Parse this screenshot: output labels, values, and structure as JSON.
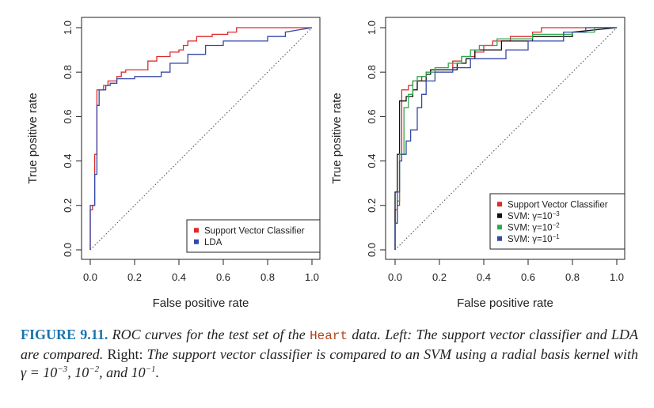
{
  "chart_data": [
    {
      "type": "line",
      "xlabel": "False positive rate",
      "ylabel": "True positive rate",
      "xlim": [
        0,
        1
      ],
      "ylim": [
        0,
        1
      ],
      "xticks": [
        "0.0",
        "0.2",
        "0.4",
        "0.6",
        "0.8",
        "1.0"
      ],
      "yticks": [
        "0.0",
        "0.2",
        "0.4",
        "0.6",
        "0.8",
        "1.0"
      ],
      "diagonal": "dotted reference line from (0,0) to (1,1)",
      "legend_position": "bottom-right",
      "series": [
        {
          "name": "Support Vector Classifier",
          "color": "#df2a2a",
          "x": [
            0,
            0,
            0.01,
            0.01,
            0.02,
            0.02,
            0.03,
            0.03,
            0.06,
            0.06,
            0.08,
            0.08,
            0.12,
            0.12,
            0.14,
            0.14,
            0.16,
            0.16,
            0.2,
            0.2,
            0.26,
            0.26,
            0.3,
            0.3,
            0.36,
            0.36,
            0.4,
            0.4,
            0.42,
            0.42,
            0.44,
            0.44,
            0.48,
            0.48,
            0.52,
            0.52,
            0.55,
            0.55,
            0.62,
            0.62,
            0.66,
            0.66,
            0.88,
            0.88,
            1
          ],
          "y": [
            0,
            0.18,
            0.18,
            0.2,
            0.2,
            0.43,
            0.43,
            0.72,
            0.72,
            0.74,
            0.74,
            0.76,
            0.76,
            0.78,
            0.78,
            0.8,
            0.8,
            0.81,
            0.81,
            0.81,
            0.81,
            0.85,
            0.85,
            0.87,
            0.87,
            0.89,
            0.89,
            0.9,
            0.9,
            0.92,
            0.92,
            0.94,
            0.94,
            0.96,
            0.96,
            0.96,
            0.96,
            0.97,
            0.97,
            0.98,
            0.98,
            1,
            1,
            1,
            1
          ]
        },
        {
          "name": "LDA",
          "color": "#3548a8",
          "x": [
            0,
            0,
            0.02,
            0.02,
            0.03,
            0.03,
            0.04,
            0.04,
            0.07,
            0.07,
            0.09,
            0.09,
            0.12,
            0.12,
            0.2,
            0.2,
            0.32,
            0.32,
            0.36,
            0.36,
            0.44,
            0.44,
            0.52,
            0.52,
            0.6,
            0.6,
            0.8,
            0.8,
            0.88,
            0.88,
            1
          ],
          "y": [
            0,
            0.2,
            0.2,
            0.34,
            0.34,
            0.65,
            0.65,
            0.72,
            0.72,
            0.74,
            0.74,
            0.75,
            0.75,
            0.77,
            0.77,
            0.78,
            0.78,
            0.8,
            0.8,
            0.84,
            0.84,
            0.88,
            0.88,
            0.92,
            0.92,
            0.94,
            0.94,
            0.96,
            0.96,
            0.98,
            1
          ]
        }
      ]
    },
    {
      "type": "line",
      "xlabel": "False positive rate",
      "ylabel": "True positive rate",
      "xlim": [
        0,
        1
      ],
      "ylim": [
        0,
        1
      ],
      "xticks": [
        "0.0",
        "0.2",
        "0.4",
        "0.6",
        "0.8",
        "1.0"
      ],
      "yticks": [
        "0.0",
        "0.2",
        "0.4",
        "0.6",
        "0.8",
        "1.0"
      ],
      "diagonal": "dotted reference line from (0,0) to (1,1)",
      "legend_position": "bottom-right",
      "series": [
        {
          "name": "Support Vector Classifier",
          "color": "#df2a2a",
          "x": [
            0,
            0,
            0.01,
            0.01,
            0.02,
            0.02,
            0.03,
            0.03,
            0.06,
            0.06,
            0.08,
            0.08,
            0.12,
            0.12,
            0.14,
            0.14,
            0.16,
            0.16,
            0.26,
            0.26,
            0.3,
            0.3,
            0.36,
            0.36,
            0.4,
            0.4,
            0.44,
            0.44,
            0.52,
            0.52,
            0.62,
            0.62,
            0.66,
            0.66,
            0.88,
            0.88,
            1
          ],
          "y": [
            0,
            0.18,
            0.18,
            0.2,
            0.2,
            0.43,
            0.43,
            0.72,
            0.72,
            0.74,
            0.74,
            0.76,
            0.76,
            0.78,
            0.78,
            0.8,
            0.8,
            0.81,
            0.81,
            0.85,
            0.85,
            0.87,
            0.87,
            0.89,
            0.89,
            0.92,
            0.92,
            0.94,
            0.94,
            0.96,
            0.96,
            0.98,
            0.98,
            1,
            1,
            1,
            1
          ]
        },
        {
          "name": "SVM: γ=10⁻³",
          "label_base": "SVM: γ=10",
          "label_exp": "−3",
          "color": "#111111",
          "x": [
            0,
            0,
            0.01,
            0.01,
            0.02,
            0.02,
            0.05,
            0.05,
            0.08,
            0.08,
            0.1,
            0.1,
            0.14,
            0.14,
            0.16,
            0.16,
            0.22,
            0.22,
            0.28,
            0.28,
            0.32,
            0.32,
            0.36,
            0.36,
            0.48,
            0.48,
            0.62,
            0.62,
            0.8,
            0.8,
            1
          ],
          "y": [
            0,
            0.26,
            0.26,
            0.43,
            0.43,
            0.67,
            0.67,
            0.69,
            0.69,
            0.72,
            0.72,
            0.76,
            0.76,
            0.79,
            0.79,
            0.81,
            0.81,
            0.81,
            0.81,
            0.84,
            0.84,
            0.86,
            0.86,
            0.9,
            0.9,
            0.94,
            0.94,
            0.96,
            0.96,
            0.98,
            1
          ]
        },
        {
          "name": "SVM: γ=10⁻²",
          "label_base": "SVM: γ=10",
          "label_exp": "−2",
          "color": "#2fa84f",
          "x": [
            0,
            0,
            0.01,
            0.01,
            0.02,
            0.02,
            0.04,
            0.04,
            0.06,
            0.06,
            0.08,
            0.08,
            0.1,
            0.1,
            0.14,
            0.14,
            0.18,
            0.18,
            0.24,
            0.24,
            0.3,
            0.3,
            0.34,
            0.34,
            0.38,
            0.38,
            0.46,
            0.46,
            0.62,
            0.62,
            0.8,
            0.8,
            0.9,
            0.9,
            1
          ],
          "y": [
            0,
            0.12,
            0.12,
            0.22,
            0.22,
            0.43,
            0.43,
            0.64,
            0.64,
            0.7,
            0.7,
            0.76,
            0.76,
            0.78,
            0.78,
            0.8,
            0.8,
            0.82,
            0.82,
            0.84,
            0.84,
            0.87,
            0.87,
            0.9,
            0.9,
            0.92,
            0.92,
            0.95,
            0.95,
            0.97,
            0.97,
            0.98,
            0.98,
            1,
            1
          ]
        },
        {
          "name": "SVM: γ=10⁻¹",
          "label_base": "SVM: γ=10",
          "label_exp": "−1",
          "color": "#3548a8",
          "x": [
            0,
            0,
            0.01,
            0.01,
            0.02,
            0.02,
            0.03,
            0.03,
            0.05,
            0.05,
            0.07,
            0.07,
            0.1,
            0.1,
            0.12,
            0.12,
            0.14,
            0.14,
            0.18,
            0.18,
            0.26,
            0.26,
            0.34,
            0.34,
            0.5,
            0.5,
            0.6,
            0.6,
            0.76,
            0.76,
            0.86,
            0.86,
            1
          ],
          "y": [
            0,
            0.12,
            0.12,
            0.26,
            0.26,
            0.4,
            0.4,
            0.43,
            0.43,
            0.49,
            0.49,
            0.54,
            0.54,
            0.64,
            0.64,
            0.7,
            0.7,
            0.76,
            0.76,
            0.8,
            0.8,
            0.82,
            0.82,
            0.86,
            0.86,
            0.9,
            0.9,
            0.94,
            0.94,
            0.98,
            0.98,
            1,
            1
          ]
        }
      ]
    }
  ],
  "caption": {
    "label": "FIGURE 9.11.",
    "p1": "ROC curves for the test set of the",
    "code": "Heart",
    "p2": "data. Left:",
    "p3": "The support vector classifier and LDA are compared.",
    "p4": "Right:",
    "p5": "The support vector classifier is compared to an SVM using a radial basis kernel with γ = 10",
    "e1": "−3",
    "p6": ", 10",
    "e2": "−2",
    "p7": ", and 10",
    "e3": "−1",
    "p8": "."
  }
}
